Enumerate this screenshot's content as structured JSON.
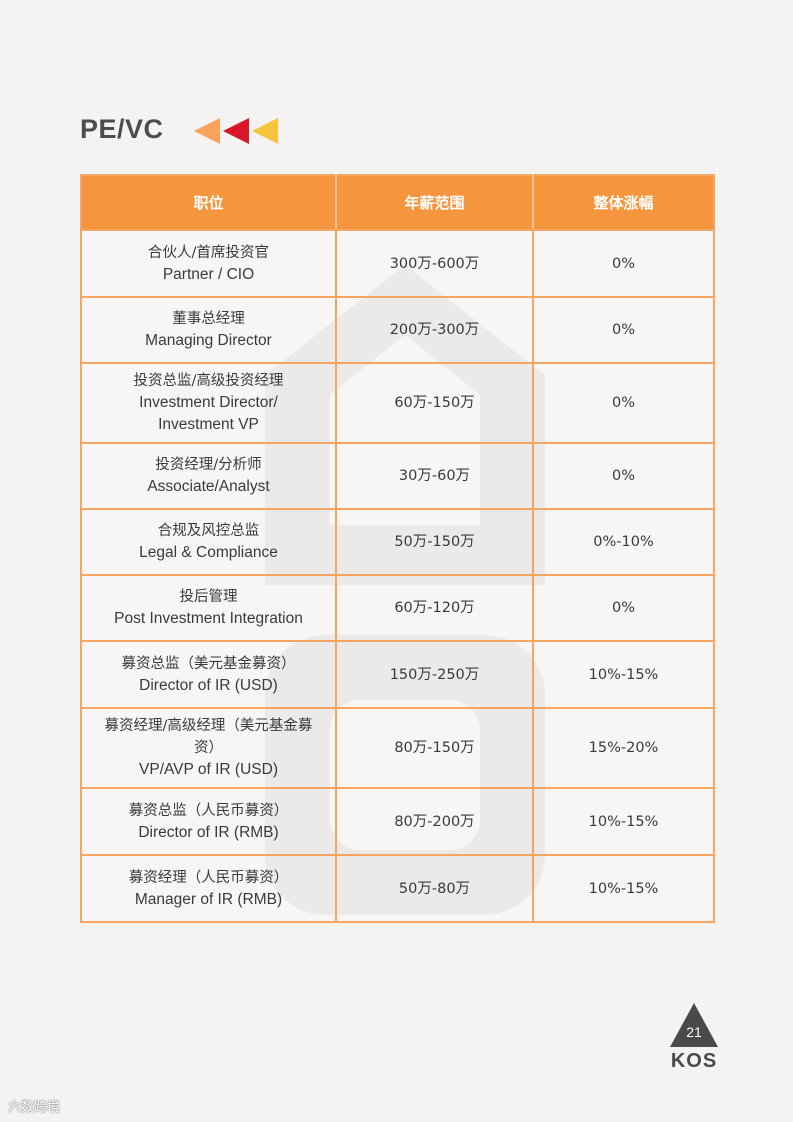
{
  "section_title": "PE/VC",
  "colors": {
    "header_bg": "#f5963e",
    "border": "#f6a562",
    "arrow_1": "#f7a35b",
    "arrow_2": "#d9152a",
    "arrow_3": "#f7c53d"
  },
  "table": {
    "headers": [
      "职位",
      "年薪范围",
      "整体涨幅"
    ],
    "rows": [
      {
        "title_lines": [
          "合伙人/首席投资官"
        ],
        "title_en_lines": [
          "Partner / CIO"
        ],
        "salary": "300万-600万",
        "increase": "0%"
      },
      {
        "title_lines": [
          "董事总经理"
        ],
        "title_en_lines": [
          "Managing Director"
        ],
        "salary": "200万-300万",
        "increase": "0%"
      },
      {
        "title_lines": [
          "投资总监/高级投资经理"
        ],
        "title_en_lines": [
          "Investment Director/",
          "Investment VP"
        ],
        "salary": "60万-150万",
        "increase": "0%"
      },
      {
        "title_lines": [
          "投资经理/分析师"
        ],
        "title_en_lines": [
          "Associate/Analyst"
        ],
        "salary": "30万-60万",
        "increase": "0%"
      },
      {
        "title_lines": [
          "合规及风控总监"
        ],
        "title_en_lines": [
          "Legal & Compliance"
        ],
        "salary": "50万-150万",
        "increase": "0%-10%"
      },
      {
        "title_lines": [
          "投后管理"
        ],
        "title_en_lines": [
          "Post Investment Integration"
        ],
        "salary": "60万-120万",
        "increase": "0%"
      },
      {
        "title_lines": [
          "募资总监（美元基金募资）"
        ],
        "title_en_lines": [
          "Director of IR (USD)"
        ],
        "salary": "150万-250万",
        "increase": "10%-15%"
      },
      {
        "title_lines": [
          "募资经理/高级经理（美元基金募",
          "资）"
        ],
        "title_en_lines": [
          "VP/AVP of IR (USD)"
        ],
        "salary": "80万-150万",
        "increase": "15%-20%"
      },
      {
        "title_lines": [
          "募资总监（人民币募资）"
        ],
        "title_en_lines": [
          "Director of IR (RMB)"
        ],
        "salary": "80万-200万",
        "increase": "10%-15%"
      },
      {
        "title_lines": [
          "募资经理（人民币募资）"
        ],
        "title_en_lines": [
          "Manager of IR (RMB)"
        ],
        "salary": "50万-80万",
        "increase": "10%-15%"
      }
    ]
  },
  "footer": {
    "page_number": "21",
    "brand": "KOS",
    "source_mark": "六数跨境"
  }
}
